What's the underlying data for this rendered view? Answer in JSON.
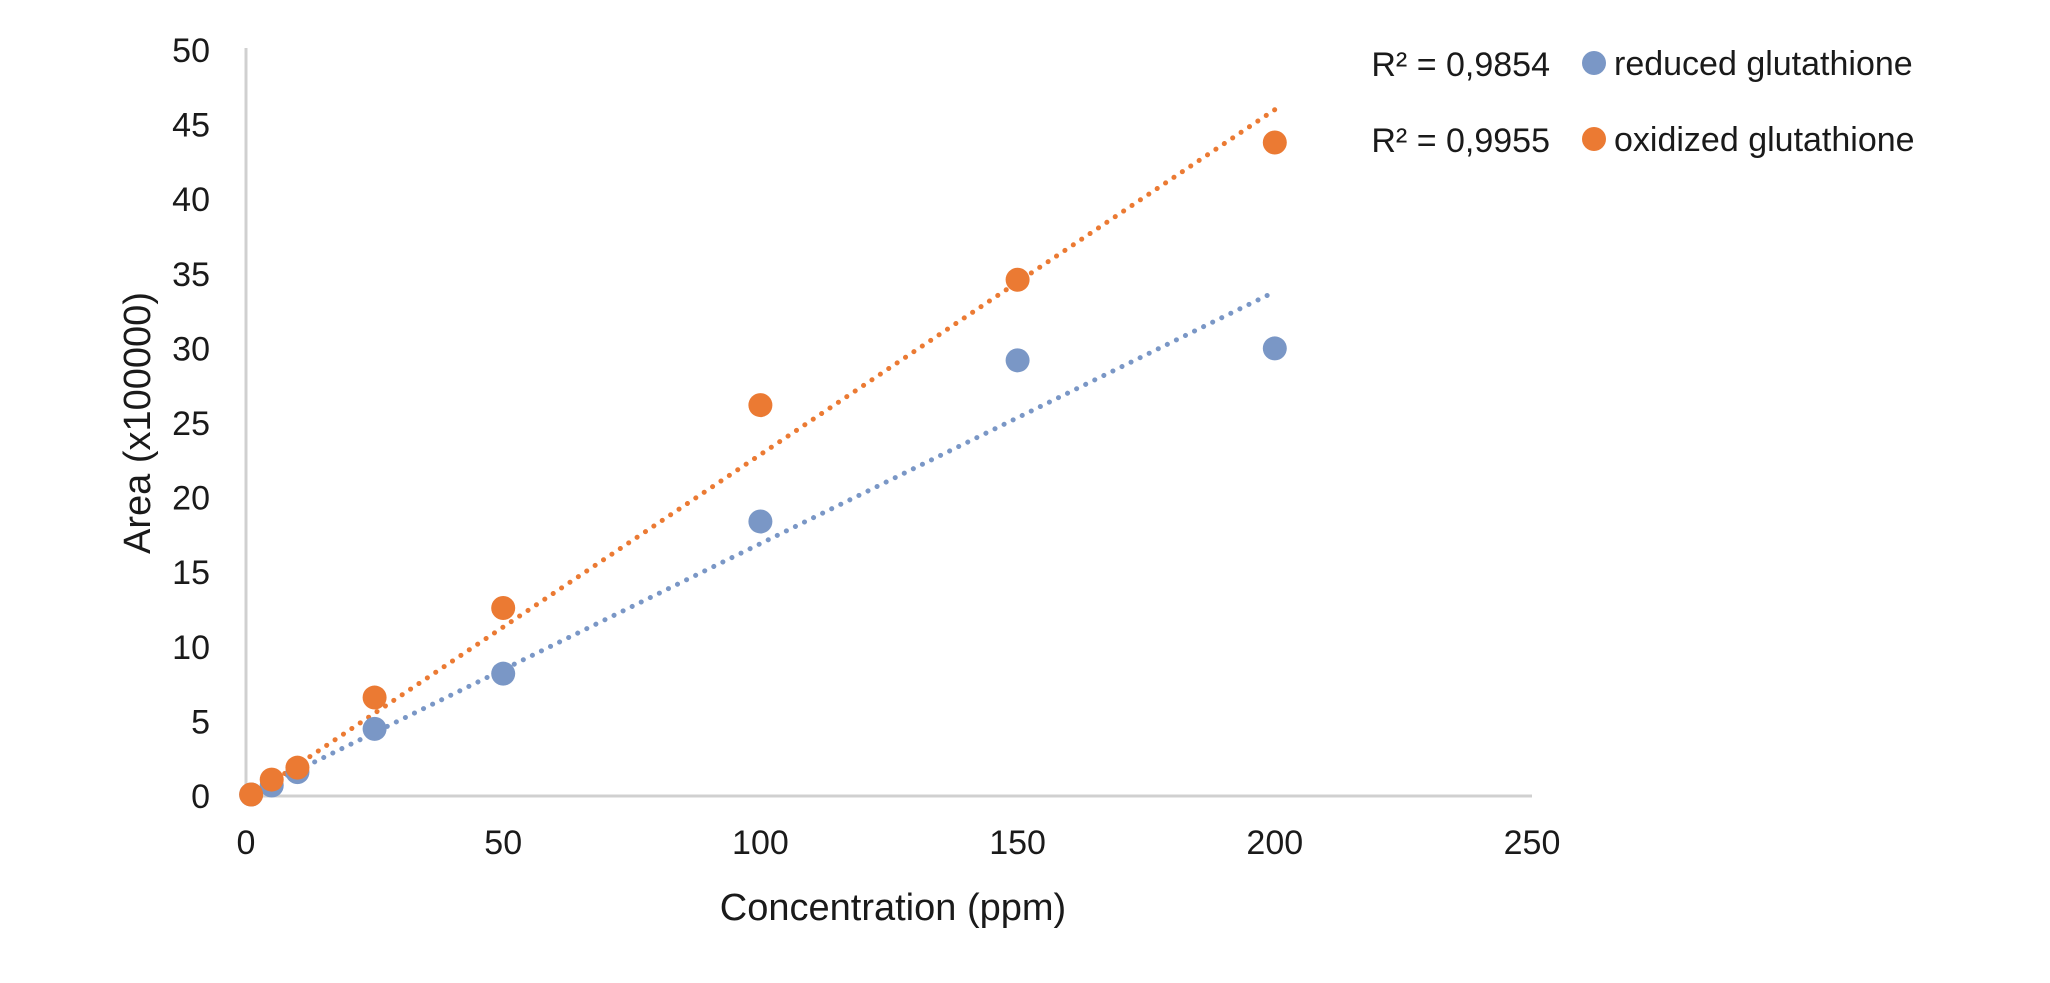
{
  "chart_data": {
    "type": "scatter",
    "title": "",
    "xlabel": "Concentration (ppm)",
    "ylabel": "Area (x100000)",
    "xlim": [
      0,
      250
    ],
    "ylim": [
      0,
      50
    ],
    "xticks": [
      0,
      50,
      100,
      150,
      200,
      250
    ],
    "yticks": [
      0,
      5,
      10,
      15,
      20,
      25,
      30,
      35,
      40,
      45,
      50
    ],
    "grid": false,
    "legend_position": "top-right",
    "series": [
      {
        "name": "reduced glutathione",
        "color": "#7A97C6",
        "x": [
          1,
          5,
          10,
          25,
          50,
          100,
          150,
          200
        ],
        "y": [
          0.1,
          0.7,
          1.6,
          4.5,
          8.2,
          18.4,
          29.2,
          30.0
        ],
        "trendline": {
          "type": "linear",
          "style": "dotted",
          "x": [
            1,
            200
          ],
          "y": [
            0.2,
            33.8
          ]
        },
        "r2_label": "R² = 0,9854"
      },
      {
        "name": "oxidized glutathione",
        "color": "#EB7A33",
        "x": [
          1,
          5,
          10,
          25,
          50,
          100,
          150,
          200
        ],
        "y": [
          0.1,
          1.1,
          1.9,
          6.6,
          12.6,
          26.2,
          34.6,
          43.8
        ],
        "trendline": {
          "type": "linear",
          "style": "dotted",
          "x": [
            1,
            200
          ],
          "y": [
            0.0,
            46.0
          ]
        },
        "r2_label": "R² = 0,9955"
      }
    ]
  }
}
